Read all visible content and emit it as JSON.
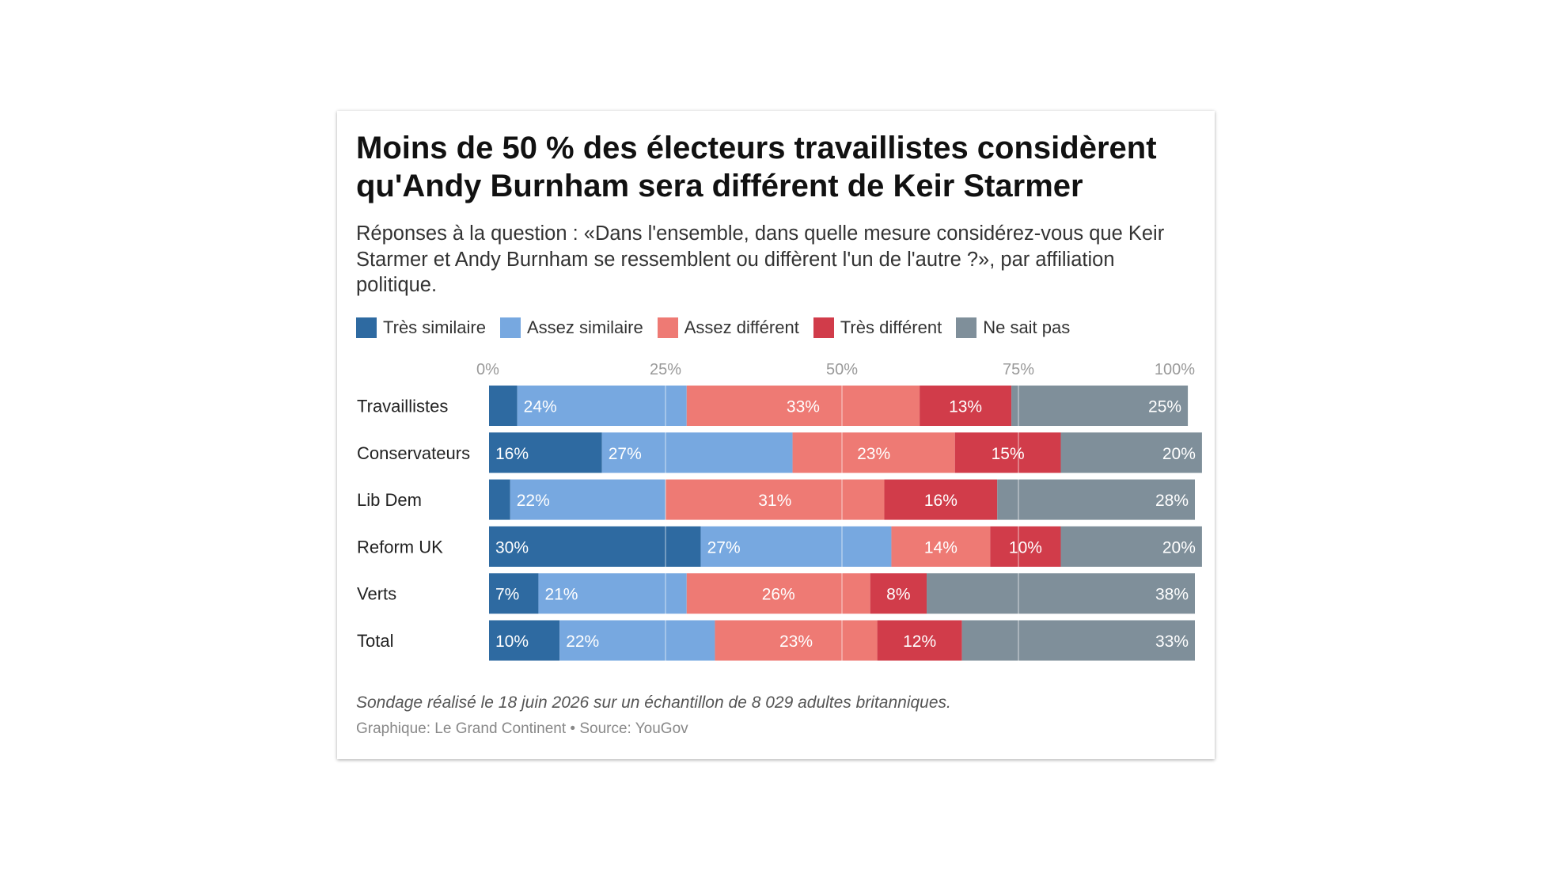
{
  "title": "Moins de 50 % des électeurs travaillistes considèrent qu'Andy Burnham sera différent de Keir Starmer",
  "subtitle": "Réponses à la question : «Dans l'ensemble, dans quelle mesure considérez-vous que Keir Starmer et Andy Burnham se ressemblent ou diffèrent l'un de l'autre ?», par affiliation politique.",
  "note": "Sondage réalisé le 18 juin 2026 sur un échantillon de 8 029 adultes britanniques.",
  "source": "Graphique: Le Grand Continent • Source: YouGov",
  "chart_data": {
    "type": "bar",
    "orientation": "horizontal",
    "stacked": true,
    "xlim": [
      0,
      100
    ],
    "x_ticks": [
      "0%",
      "25%",
      "50%",
      "75%",
      "100%"
    ],
    "grid": true,
    "legend_position": "top-left",
    "categories": [
      "Travaillistes",
      "Conservateurs",
      "Lib Dem",
      "Reform UK",
      "Verts",
      "Total"
    ],
    "series": [
      {
        "name": "Très similaire",
        "color": "#2e6aa1",
        "values": [
          4,
          16,
          3,
          30,
          7,
          10
        ],
        "labels": [
          "",
          "16%",
          "",
          "30%",
          "7%",
          "10%"
        ]
      },
      {
        "name": "Assez similaire",
        "color": "#77a8e0",
        "values": [
          24,
          27,
          22,
          27,
          21,
          22
        ],
        "labels": [
          "24%",
          "27%",
          "22%",
          "27%",
          "21%",
          "22%"
        ]
      },
      {
        "name": "Assez différent",
        "color": "#ee7a74",
        "values": [
          33,
          23,
          31,
          14,
          26,
          23
        ],
        "labels": [
          "33%",
          "23%",
          "31%",
          "14%",
          "26%",
          "23%"
        ]
      },
      {
        "name": "Très différent",
        "color": "#d13c4a",
        "values": [
          13,
          15,
          16,
          10,
          8,
          12
        ],
        "labels": [
          "13%",
          "15%",
          "16%",
          "10%",
          "8%",
          "12%"
        ]
      },
      {
        "name": "Ne sait pas",
        "color": "#7f8f9a",
        "values": [
          25,
          20,
          28,
          20,
          38,
          33
        ],
        "labels": [
          "25%",
          "20%",
          "28%",
          "20%",
          "38%",
          "33%"
        ]
      }
    ]
  }
}
